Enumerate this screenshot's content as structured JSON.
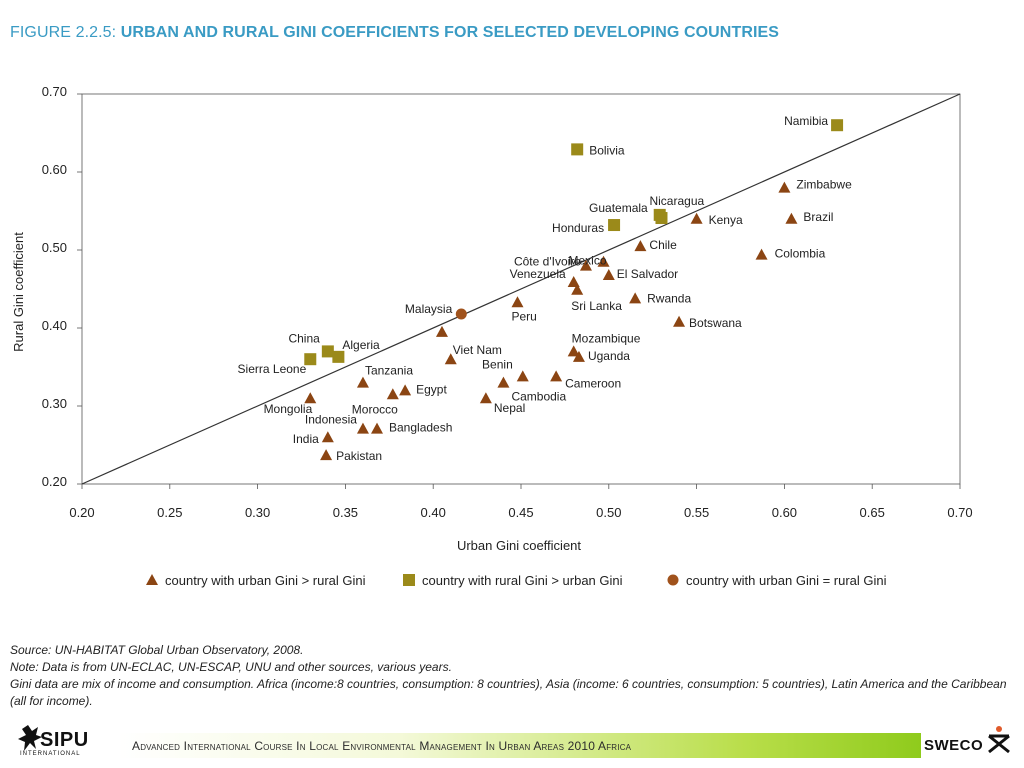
{
  "figure": {
    "title_prefix": "FIGURE 2.2.5: ",
    "title_main": "URBAN AND RURAL GINI COEFFICIENTS FOR SELECTED DEVELOPING COUNTRIES"
  },
  "chart_data": {
    "type": "scatter",
    "xlabel": "Urban Gini coefficient",
    "ylabel": "Rural Gini coefficient",
    "xlim": [
      0.2,
      0.7
    ],
    "ylim": [
      0.2,
      0.7
    ],
    "xticks": [
      "0.20",
      "0.25",
      "0.30",
      "0.35",
      "0.40",
      "0.45",
      "0.50",
      "0.55",
      "0.60",
      "0.65",
      "0.70"
    ],
    "yticks": [
      "0.20",
      "0.30",
      "0.40",
      "0.50",
      "0.60",
      "0.70"
    ],
    "grid": false,
    "reference_line": "x = y",
    "legend_position": "bottom",
    "series": [
      {
        "name": "country with urban Gini > rural Gini",
        "marker": "triangle",
        "color": "#8b4513",
        "points": [
          {
            "label": "Zimbabwe",
            "x": 0.6,
            "y": 0.58
          },
          {
            "label": "Brazil",
            "x": 0.604,
            "y": 0.54
          },
          {
            "label": "Kenya",
            "x": 0.55,
            "y": 0.54
          },
          {
            "label": "Colombia",
            "x": 0.587,
            "y": 0.494
          },
          {
            "label": "Chile",
            "x": 0.518,
            "y": 0.505
          },
          {
            "label": "Mexico",
            "x": 0.497,
            "y": 0.485
          },
          {
            "label": "Côte d'Ivoire",
            "x": 0.487,
            "y": 0.48
          },
          {
            "label": "El Salvador",
            "x": 0.5,
            "y": 0.468
          },
          {
            "label": "Venezuela",
            "x": 0.48,
            "y": 0.459
          },
          {
            "label": "Sri Lanka",
            "x": 0.482,
            "y": 0.449
          },
          {
            "label": "Rwanda",
            "x": 0.515,
            "y": 0.438
          },
          {
            "label": "Peru",
            "x": 0.448,
            "y": 0.433
          },
          {
            "label": "Botswana",
            "x": 0.54,
            "y": 0.408
          },
          {
            "label": "Viet Nam",
            "x": 0.41,
            "y": 0.36
          },
          {
            "label": "Mozambique",
            "x": 0.48,
            "y": 0.37
          },
          {
            "label": "Uganda",
            "x": 0.483,
            "y": 0.363
          },
          {
            "label": "Benin",
            "x": 0.451,
            "y": 0.338
          },
          {
            "label": "Cameroon",
            "x": 0.47,
            "y": 0.338
          },
          {
            "label": "Cambodia",
            "x": 0.44,
            "y": 0.33
          },
          {
            "label": "Nepal",
            "x": 0.43,
            "y": 0.31
          },
          {
            "label": "Tanzania",
            "x": 0.36,
            "y": 0.33
          },
          {
            "label": "Egypt",
            "x": 0.384,
            "y": 0.32
          },
          {
            "label": "Morocco",
            "x": 0.377,
            "y": 0.315
          },
          {
            "label": "Mongolia",
            "x": 0.33,
            "y": 0.31
          },
          {
            "label": "Indonesia",
            "x": 0.36,
            "y": 0.271
          },
          {
            "label": "Bangladesh",
            "x": 0.368,
            "y": 0.271
          },
          {
            "label": "India",
            "x": 0.34,
            "y": 0.26
          },
          {
            "label": "Pakistan",
            "x": 0.339,
            "y": 0.237
          },
          {
            "label": "",
            "x": 0.405,
            "y": 0.395
          }
        ]
      },
      {
        "name": "country with rural Gini > urban Gini",
        "marker": "square",
        "color": "#9b8a1a",
        "points": [
          {
            "label": "Namibia",
            "x": 0.63,
            "y": 0.66
          },
          {
            "label": "Bolivia",
            "x": 0.482,
            "y": 0.629
          },
          {
            "label": "Nicaragua",
            "x": 0.53,
            "y": 0.541
          },
          {
            "label": "Guatemala",
            "x": 0.529,
            "y": 0.545
          },
          {
            "label": "Honduras",
            "x": 0.503,
            "y": 0.532
          },
          {
            "label": "China",
            "x": 0.34,
            "y": 0.37
          },
          {
            "label": "Algeria",
            "x": 0.346,
            "y": 0.363
          },
          {
            "label": "Sierra Leone",
            "x": 0.33,
            "y": 0.36
          }
        ]
      },
      {
        "name": "country with urban Gini = rural Gini",
        "marker": "circle",
        "color": "#a0521c",
        "points": [
          {
            "label": "Malaysia",
            "x": 0.416,
            "y": 0.418
          }
        ]
      }
    ]
  },
  "notes": {
    "source": "Source: UN-HABITAT Global Urban Observatory, 2008.",
    "note": "Note: Data is from UN-ECLAC, UN-ESCAP, UNU and other sources, various years.",
    "gini": "Gini data are mix of income and consumption. Africa (income:8 countries, consumption: 8 countries), Asia (income: 6 countries, consumption: 5 countries), Latin America and the Caribbean (all for income)."
  },
  "footer": {
    "course": "Advanced International Course In Local Environmental Management In Urban Areas 2010 Africa",
    "left_logo": "SIPU",
    "left_logo_sub": "INTERNATIONAL",
    "right_logo": "SWECO"
  }
}
